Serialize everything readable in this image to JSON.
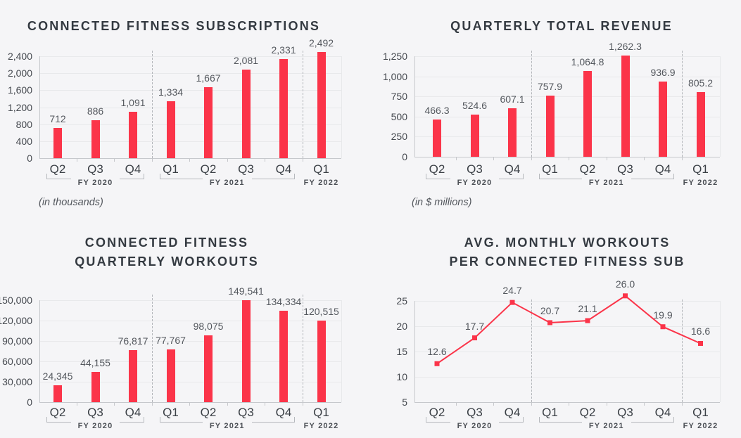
{
  "colors": {
    "background": "#f5f5f7",
    "accent": "#fb3449",
    "grid": "#e8e9eb",
    "axis": "#c6c8cc",
    "separator": "#b3b6ba",
    "bracket": "#b6b9bd",
    "title_text": "#343a41",
    "tick_text": "#45494f",
    "value_text": "#54585e",
    "category_text": "#3b4046",
    "fiscal_year_text": "#4c5056"
  },
  "chart_data": [
    {
      "id": "subscriptions",
      "type": "bar",
      "title": "CONNECTED FITNESS SUBSCRIPTIONS",
      "title_lines": [
        "CONNECTED FITNESS SUBSCRIPTIONS"
      ],
      "note": "(in thousands)",
      "categories": [
        "Q2",
        "Q3",
        "Q4",
        "Q1",
        "Q2",
        "Q3",
        "Q4",
        "Q1"
      ],
      "values": [
        712,
        886,
        1091,
        1334,
        1667,
        2081,
        2331,
        2492
      ],
      "value_labels": [
        "712",
        "886",
        "1,091",
        "1,334",
        "1,667",
        "2,081",
        "2,331",
        "2,492"
      ],
      "y_ticks": [
        0,
        400,
        800,
        1200,
        1600,
        2000,
        2400
      ],
      "y_tick_labels": [
        "0",
        "400",
        "800",
        "1,200",
        "1,600",
        "2,000",
        "2,400"
      ],
      "ylim": [
        0,
        2400
      ],
      "grid": true,
      "legend": "none",
      "groups": [
        {
          "label": "FY 2020",
          "start": 0,
          "end": 2,
          "bracket": true
        },
        {
          "label": "FY 2021",
          "start": 3,
          "end": 6,
          "bracket": true
        },
        {
          "label": "FY 2022",
          "start": 7,
          "end": 7,
          "bracket": false
        }
      ]
    },
    {
      "id": "revenue",
      "type": "bar",
      "title": "QUARTERLY TOTAL REVENUE",
      "title_lines": [
        "QUARTERLY TOTAL REVENUE"
      ],
      "note": "(in $ millions)",
      "categories": [
        "Q2",
        "Q3",
        "Q4",
        "Q1",
        "Q2",
        "Q3",
        "Q4",
        "Q1"
      ],
      "values": [
        466.3,
        524.6,
        607.1,
        757.9,
        1064.8,
        1262.3,
        936.9,
        805.2
      ],
      "value_labels": [
        "466.3",
        "524.6",
        "607.1",
        "757.9",
        "1,064.8",
        "1,262.3",
        "936.9",
        "805.2"
      ],
      "y_ticks": [
        0,
        250,
        500,
        750,
        1000,
        1250
      ],
      "y_tick_labels": [
        "0",
        "250",
        "500",
        "750",
        "1,000",
        "1,250"
      ],
      "ylim": [
        0,
        1250
      ],
      "grid": true,
      "legend": "none",
      "groups": [
        {
          "label": "FY 2020",
          "start": 0,
          "end": 2,
          "bracket": true
        },
        {
          "label": "FY 2021",
          "start": 3,
          "end": 6,
          "bracket": true
        },
        {
          "label": "FY 2022",
          "start": 7,
          "end": 7,
          "bracket": false
        }
      ]
    },
    {
      "id": "workouts",
      "type": "bar",
      "title": "CONNECTED FITNESS QUARTERLY WORKOUTS",
      "title_lines": [
        "CONNECTED FITNESS",
        "QUARTERLY WORKOUTS"
      ],
      "note": null,
      "categories": [
        "Q2",
        "Q3",
        "Q4",
        "Q1",
        "Q2",
        "Q3",
        "Q4",
        "Q1"
      ],
      "values": [
        24345,
        44155,
        76817,
        77767,
        98075,
        149541,
        134334,
        120515
      ],
      "value_labels": [
        "24,345",
        "44,155",
        "76,817",
        "77,767",
        "98,075",
        "149,541",
        "134,334",
        "120,515"
      ],
      "y_ticks": [
        0,
        30000,
        60000,
        90000,
        120000,
        150000
      ],
      "y_tick_labels": [
        "0",
        "30,000",
        "60,000",
        "90,000",
        "120,000",
        "150,000"
      ],
      "ylim": [
        0,
        150000
      ],
      "grid": true,
      "legend": "none",
      "groups": [
        {
          "label": "FY 2020",
          "start": 0,
          "end": 2,
          "bracket": true
        },
        {
          "label": "FY 2021",
          "start": 3,
          "end": 6,
          "bracket": true
        },
        {
          "label": "FY 2022",
          "start": 7,
          "end": 7,
          "bracket": false
        }
      ]
    },
    {
      "id": "avg_workouts",
      "type": "line",
      "title": "AVG. MONTHLY WORKOUTS PER CONNECTED FITNESS SUB",
      "title_lines": [
        "AVG. MONTHLY WORKOUTS",
        "PER CONNECTED FITNESS SUB"
      ],
      "note": null,
      "categories": [
        "Q2",
        "Q3",
        "Q4",
        "Q1",
        "Q2",
        "Q3",
        "Q4",
        "Q1"
      ],
      "values": [
        12.6,
        17.7,
        24.7,
        20.7,
        21.1,
        26.0,
        19.9,
        16.6
      ],
      "value_labels": [
        "12.6",
        "17.7",
        "24.7",
        "20.7",
        "21.1",
        "26.0",
        "19.9",
        "16.6"
      ],
      "y_ticks": [
        5,
        10,
        15,
        20,
        25
      ],
      "y_tick_labels": [
        "5",
        "10",
        "15",
        "20",
        "25"
      ],
      "ylim": [
        5,
        25
      ],
      "grid": true,
      "legend": "none",
      "groups": [
        {
          "label": "FY 2020",
          "start": 0,
          "end": 2,
          "bracket": true
        },
        {
          "label": "FY 2021",
          "start": 3,
          "end": 6,
          "bracket": true
        },
        {
          "label": "FY 2022",
          "start": 7,
          "end": 7,
          "bracket": false
        }
      ]
    }
  ]
}
